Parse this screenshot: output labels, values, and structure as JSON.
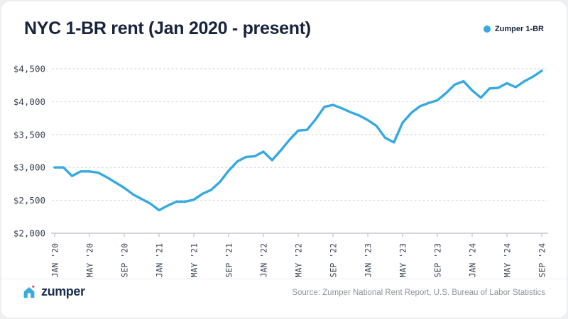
{
  "header": {
    "title": "NYC 1-BR rent (Jan 2020 - present)",
    "legend": {
      "label": "Zumper 1-BR",
      "dot_color": "#35a9e0"
    }
  },
  "footer": {
    "logo_text": "zumper",
    "logo_icon": "house-with-heart-icon",
    "source": "Source: Zumper National Rent Report, U.S. Bureau of Labor Statistics"
  },
  "colors": {
    "line": "#35a9e0",
    "title_navy": "#18233d",
    "axis_label": "#3a4252",
    "gridline": "#d9dbde",
    "axis_line": "#c6cacf",
    "source_gray": "#8e939b",
    "logo_navy": "#1b2b4e",
    "heart_red": "#e94d65"
  },
  "chart_data": {
    "type": "line",
    "title": "NYC 1-BR rent (Jan 2020 - present)",
    "xlabel": "",
    "ylabel": "",
    "x_start": "2020-01",
    "x_end": "2024-09",
    "x_frequency": "monthly",
    "ylim": [
      2000,
      4500
    ],
    "grid": "dotted-horizontal",
    "legend_position": "top-right",
    "y_ticks": [
      2000,
      2500,
      3000,
      3500,
      4000,
      4500
    ],
    "y_tick_labels": [
      "$2,000",
      "$2,500",
      "$3,000",
      "$3,500",
      "$4,000",
      "$4,500"
    ],
    "x_tick_labels": [
      "JAN '20",
      "MAY '20",
      "SEP '20",
      "JAN '21",
      "MAY '21",
      "SEP '21",
      "JAN '22",
      "MAY '22",
      "SEP '22",
      "JAN '23",
      "MAY '23",
      "SEP '23",
      "JAN '24",
      "MAY '24",
      "SEP '24"
    ],
    "x_tick_every_n_months": 4,
    "series": [
      {
        "name": "Zumper 1-BR",
        "color": "#35a9e0",
        "values": [
          3000,
          3000,
          2870,
          2940,
          2940,
          2920,
          2850,
          2770,
          2690,
          2590,
          2520,
          2450,
          2350,
          2420,
          2480,
          2480,
          2510,
          2600,
          2660,
          2780,
          2950,
          3090,
          3160,
          3170,
          3240,
          3110,
          3260,
          3420,
          3560,
          3570,
          3730,
          3920,
          3950,
          3900,
          3840,
          3790,
          3720,
          3630,
          3450,
          3380,
          3680,
          3830,
          3930,
          3980,
          4020,
          4130,
          4260,
          4310,
          4170,
          4060,
          4200,
          4210,
          4280,
          4220,
          4310,
          4380,
          4470
        ]
      }
    ]
  }
}
